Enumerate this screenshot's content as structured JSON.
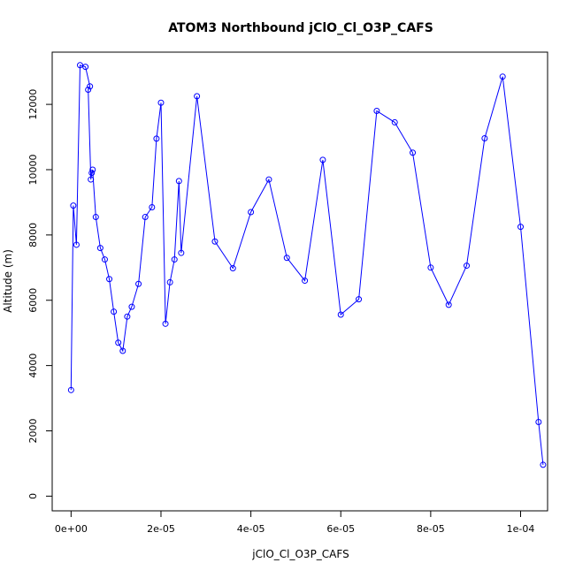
{
  "chart_data": {
    "type": "line",
    "title": "ATOM3 Northbound jClO_Cl_O3P_CAFS",
    "xlabel": "jClO_Cl_O3P_CAFS",
    "ylabel": "Altitude (m)",
    "xlim": [
      -4.2e-06,
      0.000106
    ],
    "ylim": [
      -450,
      13600
    ],
    "x_ticks": [
      0,
      2e-05,
      4e-05,
      6e-05,
      8e-05,
      0.0001
    ],
    "x_tick_labels": [
      "0e+00",
      "2e-05",
      "4e-05",
      "6e-05",
      "8e-05",
      "1e-04"
    ],
    "y_ticks": [
      0,
      2000,
      4000,
      6000,
      8000,
      10000,
      12000
    ],
    "y_tick_labels": [
      "0",
      "2000",
      "4000",
      "6000",
      "8000",
      "10000",
      "12000"
    ],
    "grid": false,
    "line_color": "#0000ff",
    "series": [
      {
        "x": [
          0.0,
          5e-07,
          1.2e-06,
          2e-06,
          3.2e-06,
          4.2e-06,
          3.8e-06,
          4.4e-06,
          4.6e-06,
          4.8e-06,
          5.5e-06,
          6.5e-06,
          7.5e-06,
          8.5e-06,
          9.5e-06,
          1.05e-05,
          1.15e-05,
          1.25e-05,
          1.35e-05,
          1.5e-05,
          1.65e-05,
          1.8e-05,
          1.9e-05,
          2e-05,
          2.1e-05,
          2.2e-05,
          2.3e-05,
          2.4e-05,
          2.45e-05,
          2.8e-05,
          3.2e-05,
          3.6e-05,
          4e-05,
          4.4e-05,
          4.8e-05,
          5.2e-05,
          5.6e-05,
          6e-05,
          6.4e-05,
          6.8e-05,
          7.2e-05,
          7.6e-05,
          8e-05,
          8.4e-05,
          8.8e-05,
          9.2e-05,
          9.6e-05,
          0.0001,
          0.000104,
          0.000105
        ],
        "y": [
          3250,
          8900,
          7700,
          13200,
          13150,
          12550,
          12450,
          9700,
          9900,
          10000,
          8550,
          7600,
          7250,
          6650,
          5650,
          4700,
          4450,
          5500,
          5800,
          6500,
          8550,
          8850,
          10950,
          12050,
          5280,
          6550,
          7250,
          9650,
          7450,
          12250,
          7800,
          6980,
          8700,
          9700,
          7300,
          6600,
          10300,
          5560,
          6030,
          11800,
          11450,
          10520,
          7000,
          5860,
          7060,
          10960,
          12850,
          8250,
          2270,
          960
        ]
      }
    ]
  }
}
